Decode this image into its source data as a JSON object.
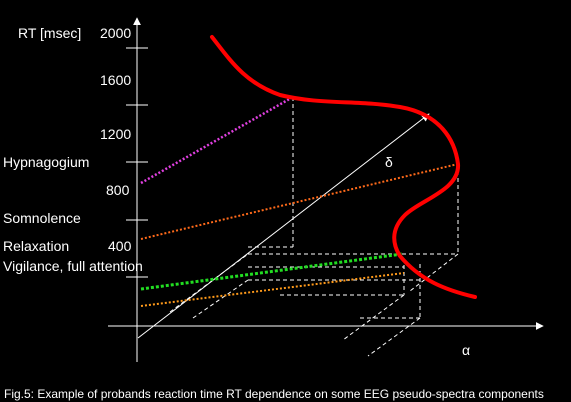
{
  "figure": {
    "y_axis_label": "RT [msec]",
    "x_axis_label": "α",
    "diagonal_axis_label": "δ",
    "ticks": [
      "2000",
      "1600",
      "1200",
      "800",
      "400"
    ],
    "states": {
      "hypnagogium": "Hypnagogium",
      "somnolence": "Somnolence",
      "relaxation": "Relaxation",
      "vigilance": "Vigilance, full attention"
    },
    "caption": "Fig.5: Example of probands reaction time RT dependence on some EEG pseudo-spectra components"
  },
  "colors": {
    "background": "#000000",
    "axes": "#ffffff",
    "rt_curve": "#ff0000",
    "hypnagogium_line": "#e040e0",
    "somnolence_line": "#ff6a1a",
    "vigilance_line": "#22dd22",
    "vigilance_line_2": "#ff9a1a"
  }
}
